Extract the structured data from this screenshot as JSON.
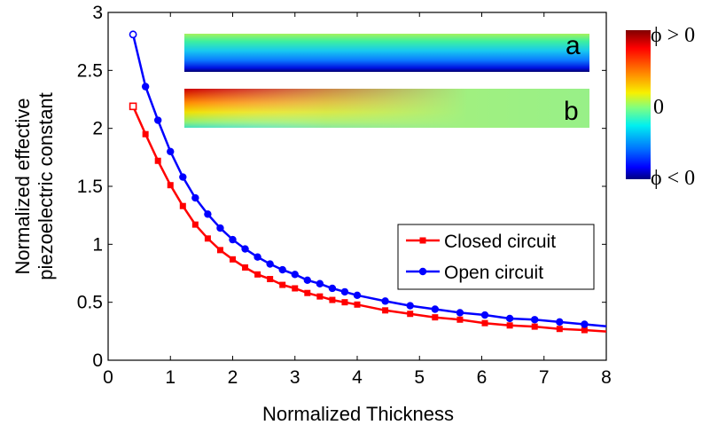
{
  "chart_data": {
    "type": "line",
    "xlabel": "Normalized Thickness",
    "ylabel": [
      "Normalized effective",
      "piezoelectric constant"
    ],
    "xlim": [
      0,
      8
    ],
    "ylim": [
      0,
      3
    ],
    "xticks": [
      "0",
      "1",
      "2",
      "3",
      "4",
      "5",
      "6",
      "7",
      "8"
    ],
    "yticks": [
      "0",
      "0.5",
      "1",
      "1.5",
      "2",
      "2.5",
      "3"
    ],
    "grid": false,
    "legend_position": "lower-right",
    "series": [
      {
        "name": "Closed circuit",
        "color": "#ff0000",
        "marker": "square",
        "x": [
          0.4,
          0.6,
          0.8,
          1.0,
          1.2,
          1.4,
          1.6,
          1.8,
          2.0,
          2.2,
          2.4,
          2.6,
          2.8,
          3.0,
          3.2,
          3.4,
          3.6,
          3.8,
          4.0,
          4.45,
          4.85,
          5.25,
          5.65,
          6.05,
          6.45,
          6.85,
          7.25,
          7.65
        ],
        "y": [
          2.19,
          1.95,
          1.72,
          1.51,
          1.33,
          1.17,
          1.05,
          0.95,
          0.87,
          0.8,
          0.74,
          0.7,
          0.65,
          0.62,
          0.58,
          0.55,
          0.52,
          0.5,
          0.48,
          0.43,
          0.4,
          0.37,
          0.35,
          0.32,
          0.3,
          0.29,
          0.27,
          0.26
        ]
      },
      {
        "name": "Open circuit",
        "color": "#0000ff",
        "marker": "circle",
        "x": [
          0.4,
          0.6,
          0.8,
          1.0,
          1.2,
          1.4,
          1.6,
          1.8,
          2.0,
          2.2,
          2.4,
          2.6,
          2.8,
          3.0,
          3.2,
          3.4,
          3.6,
          3.8,
          4.0,
          4.45,
          4.85,
          5.25,
          5.65,
          6.05,
          6.45,
          6.85,
          7.25,
          7.65
        ],
        "y": [
          2.81,
          2.36,
          2.07,
          1.8,
          1.58,
          1.4,
          1.26,
          1.14,
          1.04,
          0.96,
          0.89,
          0.83,
          0.78,
          0.74,
          0.69,
          0.66,
          0.62,
          0.59,
          0.56,
          0.51,
          0.47,
          0.44,
          0.41,
          0.39,
          0.36,
          0.35,
          0.33,
          0.31
        ]
      }
    ],
    "insets": [
      {
        "label": "a"
      },
      {
        "label": "b"
      }
    ],
    "colorbar": {
      "labels": {
        "top": "ϕ > 0",
        "middle": "0",
        "bottom": "ϕ < 0"
      }
    }
  }
}
